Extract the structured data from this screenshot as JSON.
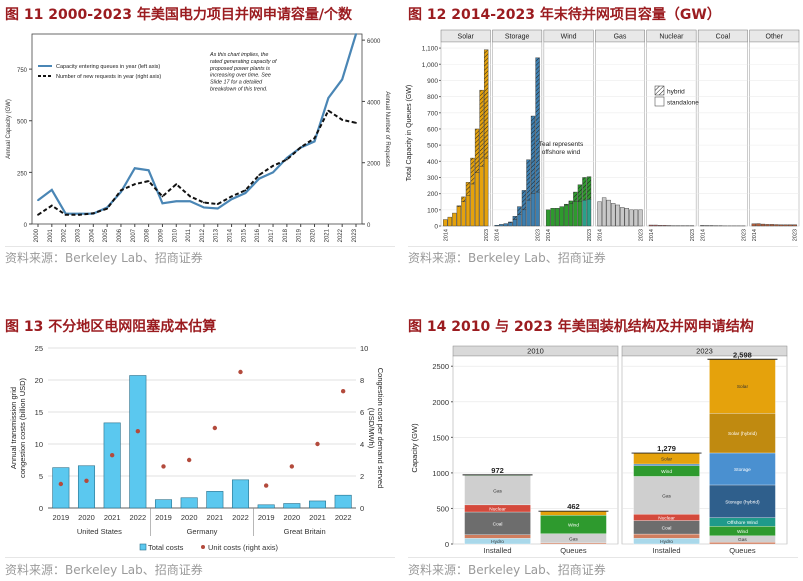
{
  "figures": [
    {
      "title": "图 11 2000-2023 年美国电力项目并网申请容量/个数",
      "source": "资料来源：Berkeley Lab、招商证券"
    },
    {
      "title": "图 12 2014-2023 年末待并网项目容量（GW）",
      "source": "资料来源：Berkeley Lab、招商证券"
    },
    {
      "title": "图 13 不分地区电网阻塞成本估算",
      "source": "资料来源：Berkeley Lab、招商证券"
    },
    {
      "title": "图 14 2010 与 2023 年美国装机结构及并网申请结构",
      "source": "资料来源：Berkeley Lab、招商证券"
    }
  ],
  "chart_data": [
    {
      "type": "line",
      "x": [
        2000,
        2001,
        2002,
        2003,
        2004,
        2005,
        2006,
        2007,
        2008,
        2009,
        2010,
        2011,
        2012,
        2013,
        2014,
        2015,
        2016,
        2017,
        2018,
        2019,
        2020,
        2021,
        2022,
        2023
      ],
      "series": [
        {
          "name": "Capacity entering queues in year (left axis)",
          "axis": "left",
          "color": "#4a86b5",
          "style": "solid",
          "values": [
            115,
            165,
            50,
            50,
            50,
            80,
            155,
            270,
            260,
            100,
            110,
            110,
            80,
            75,
            120,
            150,
            220,
            250,
            320,
            370,
            400,
            610,
            700,
            920
          ]
        },
        {
          "name": "Number of new requests in year (right axis)",
          "axis": "right",
          "color": "#111111",
          "style": "dashed",
          "values": [
            300,
            600,
            300,
            300,
            350,
            500,
            1100,
            1300,
            1400,
            900,
            1300,
            900,
            700,
            650,
            900,
            1100,
            1600,
            1900,
            2100,
            2500,
            2800,
            3700,
            3400,
            3300
          ]
        }
      ],
      "ylabel": "Annual Capacity (GW)",
      "y2label": "Annual Number of Requests",
      "ylim": [
        0,
        920
      ],
      "y2lim": [
        0,
        6200
      ],
      "yticks": [
        0,
        250,
        500,
        750
      ],
      "y2ticks": [
        0,
        2000,
        4000,
        6000
      ],
      "annotation": "As this chart implies, the rated generating capacity of proposed power plants is increasing over time. See Slide 17 for a detailed breakdown of this trend.",
      "legend": "top-left"
    },
    {
      "type": "bar",
      "ylabel": "Total Capacity in Queues (GW)",
      "ylim": [
        0,
        1150
      ],
      "yticks": [
        0,
        100,
        200,
        300,
        400,
        500,
        600,
        700,
        800,
        900,
        1000,
        1100
      ],
      "ytick_labels": [
        "0",
        "100",
        "200",
        "300",
        "400",
        "500",
        "600",
        "700",
        "800",
        "900",
        "1,000",
        "1,100"
      ],
      "years": [
        2014,
        2015,
        2016,
        2017,
        2018,
        2019,
        2020,
        2021,
        2022,
        2023
      ],
      "legend": [
        "hybrid",
        "standalone"
      ],
      "annotation": "Teal represents offshore wind",
      "facets": [
        {
          "name": "Solar",
          "color": "#e5a20c",
          "standalone": [
            40,
            55,
            80,
            120,
            150,
            190,
            260,
            330,
            370,
            420
          ],
          "hybrid": [
            0,
            0,
            0,
            5,
            30,
            80,
            160,
            270,
            470,
            670
          ]
        },
        {
          "name": "Storage",
          "color": "#3d7fb0",
          "standalone": [
            5,
            10,
            15,
            20,
            40,
            70,
            100,
            160,
            200,
            210
          ],
          "hybrid": [
            0,
            0,
            0,
            5,
            20,
            50,
            120,
            250,
            480,
            830
          ]
        },
        {
          "name": "Wind",
          "color": "#2e9a2e",
          "standalone": [
            100,
            110,
            110,
            120,
            130,
            140,
            150,
            150,
            160,
            165
          ],
          "hybrid": [
            0,
            0,
            0,
            0,
            5,
            15,
            60,
            105,
            140,
            140
          ]
        },
        {
          "name": "Gas",
          "color": "#c8c8c8",
          "standalone": [
            150,
            175,
            160,
            140,
            130,
            115,
            110,
            100,
            100,
            100
          ],
          "hybrid": [
            0,
            0,
            0,
            0,
            0,
            0,
            0,
            0,
            0,
            0
          ]
        },
        {
          "name": "Nuclear",
          "color": "#c86868",
          "standalone": [
            6,
            6,
            4,
            4,
            3,
            2,
            2,
            2,
            2,
            2
          ],
          "hybrid": [
            0,
            0,
            0,
            0,
            0,
            0,
            0,
            0,
            0,
            0
          ]
        },
        {
          "name": "Coal",
          "color": "#a4a4a4",
          "standalone": [
            4,
            3,
            3,
            2,
            2,
            1,
            1,
            1,
            1,
            1
          ],
          "hybrid": [
            0,
            0,
            0,
            0,
            0,
            0,
            0,
            0,
            0,
            0
          ]
        },
        {
          "name": "Other",
          "color": "#b35f3c",
          "standalone": [
            14,
            15,
            12,
            10,
            10,
            9,
            8,
            8,
            8,
            8
          ],
          "hybrid": [
            0,
            0,
            0,
            0,
            0,
            0,
            0,
            0,
            0,
            0
          ]
        }
      ]
    },
    {
      "type": "bar",
      "groups": [
        "United States",
        "Germany",
        "Great Britain"
      ],
      "categories": [
        2019,
        2020,
        2021,
        2022
      ],
      "series": [
        {
          "name": "Total costs",
          "axis": "left",
          "color": "#5bc8ef",
          "values": [
            [
              6.3,
              6.6,
              13.3,
              20.7
            ],
            [
              1.3,
              1.6,
              2.6,
              4.4
            ],
            [
              0.5,
              0.7,
              1.1,
              2.0
            ]
          ]
        },
        {
          "name": "Unit costs (right axis)",
          "axis": "right",
          "color": "#b34a3c",
          "values": [
            [
              1.5,
              1.7,
              3.3,
              4.8
            ],
            [
              2.6,
              3.0,
              5.0,
              8.5
            ],
            [
              1.4,
              2.6,
              4.0,
              7.3
            ]
          ]
        }
      ],
      "ylabel": "Annual transmission grid congestion costs (billion USD)",
      "y2label": "Congestion cost per demand served (USD/MWh)",
      "ylim": [
        0,
        25
      ],
      "y2lim": [
        0,
        10
      ],
      "yticks": [
        0,
        5,
        10,
        15,
        20,
        25
      ],
      "y2ticks": [
        0,
        2,
        4,
        6,
        8,
        10
      ],
      "legend": "bottom"
    },
    {
      "type": "bar",
      "ylabel": "Capacity (GW)",
      "ylim": [
        0,
        2700
      ],
      "yticks": [
        0,
        500,
        1000,
        1500,
        2000,
        2500
      ],
      "facets": [
        {
          "name": "2010",
          "bars": [
            {
              "label": "Installed",
              "total": "972",
              "segments": [
                {
                  "name": "Hydro",
                  "value": 80,
                  "color": "#a9d8ea"
                },
                {
                  "name": "Other",
                  "value": 50,
                  "color": "#d07d5e"
                },
                {
                  "name": "Coal",
                  "value": 320,
                  "color": "#6d6d6d"
                },
                {
                  "name": "Nuclear",
                  "value": 100,
                  "color": "#d44a3c"
                },
                {
                  "name": "Gas",
                  "value": 410,
                  "color": "#cfcfcf"
                },
                {
                  "name": "Wind",
                  "value": 12,
                  "color": "#4aa04a"
                }
              ]
            },
            {
              "label": "Queues",
              "total": "462",
              "segments": [
                {
                  "name": "Other",
                  "value": 15,
                  "color": "#d07d5e"
                },
                {
                  "name": "Gas",
                  "value": 130,
                  "color": "#cfcfcf"
                },
                {
                  "name": "Wind",
                  "value": 260,
                  "color": "#2e9a2e"
                },
                {
                  "name": "Solar",
                  "value": 57,
                  "color": "#e5a20c"
                }
              ]
            }
          ]
        },
        {
          "name": "2023",
          "bars": [
            {
              "label": "Installed",
              "total": "1,279",
              "segments": [
                {
                  "name": "Hydro",
                  "value": 80,
                  "color": "#a9d8ea"
                },
                {
                  "name": "Other",
                  "value": 60,
                  "color": "#d07d5e"
                },
                {
                  "name": "Coal",
                  "value": 190,
                  "color": "#6d6d6d"
                },
                {
                  "name": "Nuclear",
                  "value": 90,
                  "color": "#d44a3c"
                },
                {
                  "name": "Gas",
                  "value": 530,
                  "color": "#cfcfcf"
                },
                {
                  "name": "Wind",
                  "value": 150,
                  "color": "#2e9a2e"
                },
                {
                  "name": "Storage",
                  "value": 25,
                  "color": "#3d7fb0"
                },
                {
                  "name": "Solar",
                  "value": 154,
                  "color": "#e5a20c"
                }
              ]
            },
            {
              "label": "Queues",
              "total": "2,598",
              "segments": [
                {
                  "name": "Other",
                  "value": 25,
                  "color": "#d07d5e"
                },
                {
                  "name": "Gas",
                  "value": 90,
                  "color": "#cfcfcf"
                },
                {
                  "name": "Wind",
                  "value": 135,
                  "color": "#2e9a2e"
                },
                {
                  "name": "Offshore Wind",
                  "value": 120,
                  "color": "#1f9a8a"
                },
                {
                  "name": "Storage (hybrid)",
                  "value": 460,
                  "color": "#2f5f8c"
                },
                {
                  "name": "Storage",
                  "value": 450,
                  "color": "#4a90d0"
                },
                {
                  "name": "Solar (hybrid)",
                  "value": 560,
                  "color": "#c08a10"
                },
                {
                  "name": "Solar",
                  "value": 758,
                  "color": "#e5a20c"
                }
              ]
            }
          ]
        }
      ]
    }
  ]
}
